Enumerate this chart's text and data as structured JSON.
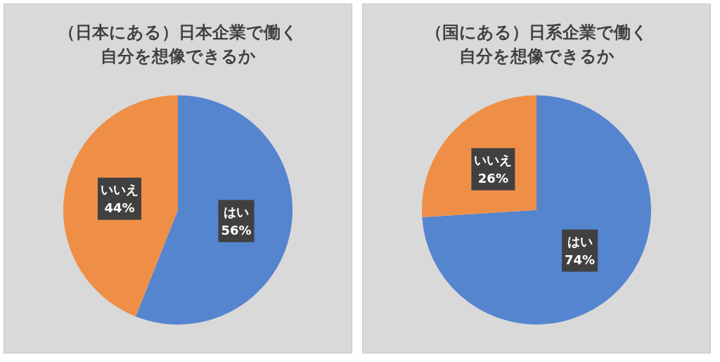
{
  "chart_data": [
    {
      "type": "pie",
      "title": "（日本にある）日本企業で働く自分を想像できるか",
      "categories": [
        "はい",
        "いいえ"
      ],
      "values": [
        56,
        44
      ],
      "value_labels": [
        "56%",
        "44%"
      ],
      "colors": [
        "#5685cf",
        "#ef8f47"
      ],
      "legend": false
    },
    {
      "type": "pie",
      "title": "（国にある）日系企業で働く自分を想像できるか",
      "categories": [
        "はい",
        "いいえ"
      ],
      "values": [
        74,
        26
      ],
      "value_labels": [
        "74%",
        "26%"
      ],
      "colors": [
        "#5685cf",
        "#ef8f47"
      ],
      "legend": false
    }
  ]
}
